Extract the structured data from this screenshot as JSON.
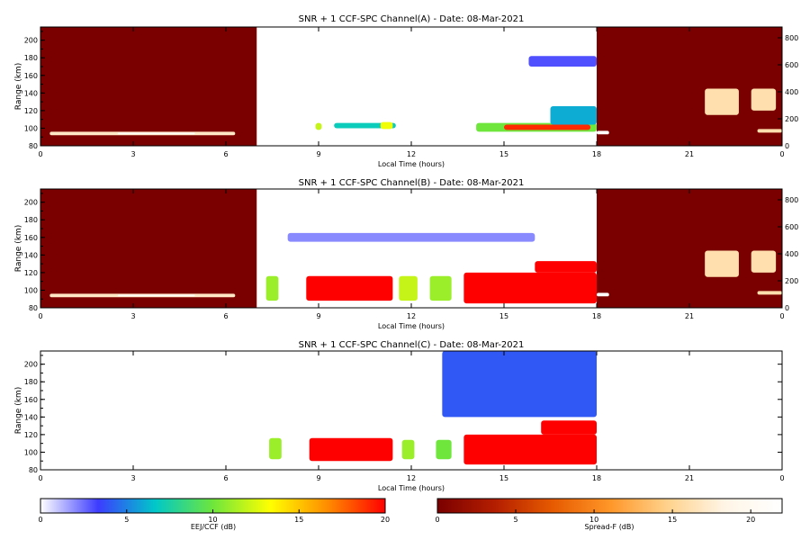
{
  "chart_data": [
    {
      "type": "heatmap",
      "title": "SNR + 1 CCF-SPC Channel(A) - Date: 08-Mar-2021",
      "xlabel": "Local Time (hours)",
      "ylabel": "Range (km)",
      "xlim": [
        0,
        24
      ],
      "ylim": [
        80,
        215
      ],
      "x_ticks": [
        "0",
        "3",
        "6",
        "9",
        "12",
        "15",
        "18",
        "21",
        "0"
      ],
      "y_ticks": [
        "80",
        "100",
        "120",
        "140",
        "160",
        "180",
        "200"
      ],
      "y2_ticks": [
        "0",
        "200",
        "400",
        "600",
        "800"
      ],
      "y2lim": [
        0,
        880
      ],
      "segments": [
        {
          "colormap": "Spread-F",
          "x_range": [
            0,
            7
          ],
          "background_db": 0
        },
        {
          "colormap": "EEJ/CCF",
          "x_range": [
            7,
            18
          ],
          "background_db": 0
        },
        {
          "colormap": "Spread-F",
          "x_range": [
            18,
            24
          ],
          "background_db": 0
        }
      ],
      "features": [
        {
          "map": "sf",
          "x": [
            0.3,
            6.3
          ],
          "y": [
            92,
            96
          ],
          "db": 17
        },
        {
          "map": "sf",
          "x": [
            2.5,
            5.0
          ],
          "y": [
            93,
            95
          ],
          "db": 21
        },
        {
          "map": "eej",
          "x": [
            8.9,
            9.1
          ],
          "y": [
            98,
            106
          ],
          "db": 12
        },
        {
          "map": "eej",
          "x": [
            9.5,
            11.5
          ],
          "y": [
            100,
            106
          ],
          "db": 7
        },
        {
          "map": "eej",
          "x": [
            11.0,
            11.4
          ],
          "y": [
            99,
            107
          ],
          "db": 13
        },
        {
          "map": "eej",
          "x": [
            14.1,
            18.0
          ],
          "y": [
            96,
            106
          ],
          "db": 10
        },
        {
          "map": "eej",
          "x": [
            15.0,
            17.8
          ],
          "y": [
            98,
            104
          ],
          "db": 19
        },
        {
          "map": "eej",
          "x": [
            16.5,
            18.0
          ],
          "y": [
            104,
            125
          ],
          "db": 6
        },
        {
          "map": "eej",
          "x": [
            15.8,
            18.0
          ],
          "y": [
            170,
            182
          ],
          "db": 3
        },
        {
          "map": "sf",
          "x": [
            18.0,
            18.4
          ],
          "y": [
            93,
            97
          ],
          "db": 22
        },
        {
          "map": "sf",
          "x": [
            21.5,
            22.6
          ],
          "y": [
            115,
            145
          ],
          "db": 16
        },
        {
          "map": "sf",
          "x": [
            23.0,
            23.8
          ],
          "y": [
            120,
            145
          ],
          "db": 16
        },
        {
          "map": "sf",
          "x": [
            23.2,
            24.0
          ],
          "y": [
            95,
            99
          ],
          "db": 16
        }
      ]
    },
    {
      "type": "heatmap",
      "title": "SNR + 1 CCF-SPC Channel(B) - Date: 08-Mar-2021",
      "xlabel": "Local Time (hours)",
      "ylabel": "Range (km)",
      "xlim": [
        0,
        24
      ],
      "ylim": [
        80,
        215
      ],
      "x_ticks": [
        "0",
        "3",
        "6",
        "9",
        "12",
        "15",
        "18",
        "21",
        "0"
      ],
      "y_ticks": [
        "80",
        "100",
        "120",
        "140",
        "160",
        "180",
        "200"
      ],
      "y2_ticks": [
        "0",
        "200",
        "400",
        "600",
        "800"
      ],
      "y2lim": [
        0,
        880
      ],
      "segments": [
        {
          "colormap": "Spread-F",
          "x_range": [
            0,
            7
          ],
          "background_db": 0
        },
        {
          "colormap": "EEJ/CCF",
          "x_range": [
            7,
            18
          ],
          "background_db": 0
        },
        {
          "colormap": "Spread-F",
          "x_range": [
            18,
            24
          ],
          "background_db": 0
        }
      ],
      "features": [
        {
          "map": "sf",
          "x": [
            0.3,
            6.3
          ],
          "y": [
            92,
            96
          ],
          "db": 17
        },
        {
          "map": "sf",
          "x": [
            2.5,
            5.0
          ],
          "y": [
            93,
            95
          ],
          "db": 21
        },
        {
          "map": "eej",
          "x": [
            7.3,
            7.7
          ],
          "y": [
            88,
            116
          ],
          "db": 11
        },
        {
          "map": "eej",
          "x": [
            8.6,
            11.4
          ],
          "y": [
            88,
            116
          ],
          "db": 20
        },
        {
          "map": "eej",
          "x": [
            11.6,
            12.2
          ],
          "y": [
            88,
            116
          ],
          "db": 12
        },
        {
          "map": "eej",
          "x": [
            12.6,
            13.3
          ],
          "y": [
            88,
            116
          ],
          "db": 11
        },
        {
          "map": "eej",
          "x": [
            13.7,
            18.0
          ],
          "y": [
            85,
            120
          ],
          "db": 20
        },
        {
          "map": "eej",
          "x": [
            16.0,
            18.0
          ],
          "y": [
            120,
            133
          ],
          "db": 20
        },
        {
          "map": "eej",
          "x": [
            8.0,
            16.0
          ],
          "y": [
            155,
            165
          ],
          "db": 2
        },
        {
          "map": "sf",
          "x": [
            18.0,
            18.4
          ],
          "y": [
            93,
            97
          ],
          "db": 22
        },
        {
          "map": "sf",
          "x": [
            21.5,
            22.6
          ],
          "y": [
            115,
            145
          ],
          "db": 16
        },
        {
          "map": "sf",
          "x": [
            23.0,
            23.8
          ],
          "y": [
            120,
            145
          ],
          "db": 16
        },
        {
          "map": "sf",
          "x": [
            23.2,
            24.0
          ],
          "y": [
            95,
            99
          ],
          "db": 16
        }
      ]
    },
    {
      "type": "heatmap",
      "title": "SNR + 1 CCF-SPC Channel(C) - Date: 08-Mar-2021",
      "xlabel": "Local Time (hours)",
      "ylabel": "Range (km)",
      "xlim": [
        0,
        24
      ],
      "ylim": [
        80,
        215
      ],
      "x_ticks": [
        "0",
        "3",
        "6",
        "9",
        "12",
        "15",
        "18",
        "21",
        "0"
      ],
      "y_ticks": [
        "80",
        "100",
        "120",
        "140",
        "160",
        "180",
        "200"
      ],
      "segments": [
        {
          "colormap": "EEJ/CCF",
          "x_range": [
            7,
            18
          ],
          "background_db": 0
        }
      ],
      "features": [
        {
          "map": "eej",
          "x": [
            7.4,
            7.8
          ],
          "y": [
            92,
            116
          ],
          "db": 11
        },
        {
          "map": "eej",
          "x": [
            8.7,
            11.4
          ],
          "y": [
            90,
            116
          ],
          "db": 20
        },
        {
          "map": "eej",
          "x": [
            11.7,
            12.1
          ],
          "y": [
            92,
            114
          ],
          "db": 11
        },
        {
          "map": "eej",
          "x": [
            12.8,
            13.3
          ],
          "y": [
            92,
            114
          ],
          "db": 10
        },
        {
          "map": "eej",
          "x": [
            13.7,
            18.0
          ],
          "y": [
            86,
            120
          ],
          "db": 20
        },
        {
          "map": "eej",
          "x": [
            16.2,
            18.0
          ],
          "y": [
            120,
            136
          ],
          "db": 20
        },
        {
          "map": "eej",
          "x": [
            13.0,
            18.0
          ],
          "y": [
            140,
            215
          ],
          "db": 4
        }
      ]
    }
  ],
  "colorbars": [
    {
      "label": "EEJ/CCF (dB)",
      "ticks": [
        "0",
        "5",
        "10",
        "15",
        "20"
      ],
      "range": [
        0,
        20
      ],
      "colors": [
        "#ffffff",
        "#3c3cff",
        "#00c8c8",
        "#6ee63c",
        "#ffff00",
        "#ff8c00",
        "#ff0000"
      ]
    },
    {
      "label": "Spread-F (dB)",
      "ticks": [
        "0",
        "5",
        "10",
        "15",
        "20"
      ],
      "range": [
        0,
        22
      ],
      "colors": [
        "#7a0000",
        "#b41e00",
        "#e65a00",
        "#ff9628",
        "#ffd28c",
        "#fff5e6",
        "#ffffff"
      ]
    }
  ]
}
